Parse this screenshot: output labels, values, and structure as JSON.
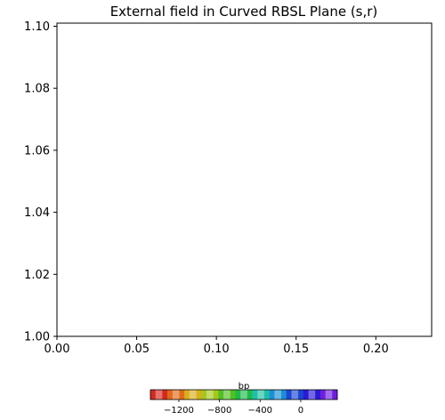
{
  "chart_data": {
    "type": "scatter",
    "title": "External field in Curved RBSL Plane (s,r)",
    "xlabel": "",
    "ylabel": "",
    "xlim": [
      0.0,
      0.235
    ],
    "ylim": [
      1.0,
      1.101
    ],
    "xticks": [
      "0.00",
      "0.05",
      "0.10",
      "0.15",
      "0.20"
    ],
    "xtick_values": [
      0.0,
      0.05,
      0.1,
      0.15,
      0.2
    ],
    "yticks": [
      "1.00",
      "1.02",
      "1.04",
      "1.06",
      "1.08",
      "1.10"
    ],
    "ytick_values": [
      1.0,
      1.02,
      1.04,
      1.06,
      1.08,
      1.1
    ],
    "grid": false,
    "points": [],
    "colorbar": {
      "label": "bp",
      "orientation": "horizontal",
      "placement": "bottom",
      "range": [
        -1480,
        360
      ],
      "ticks": [
        "−1200",
        "−800",
        "−400",
        "0"
      ],
      "tick_values": [
        -1200,
        -800,
        -400,
        0
      ],
      "colors": [
        "#d42a1e",
        "#e06a1a",
        "#d9b01c",
        "#a5c81c",
        "#52bf22",
        "#1eba4a",
        "#1ec0a5",
        "#1a8fd4",
        "#1a46d4",
        "#2a1ad4",
        "#6e1ee0"
      ]
    }
  }
}
